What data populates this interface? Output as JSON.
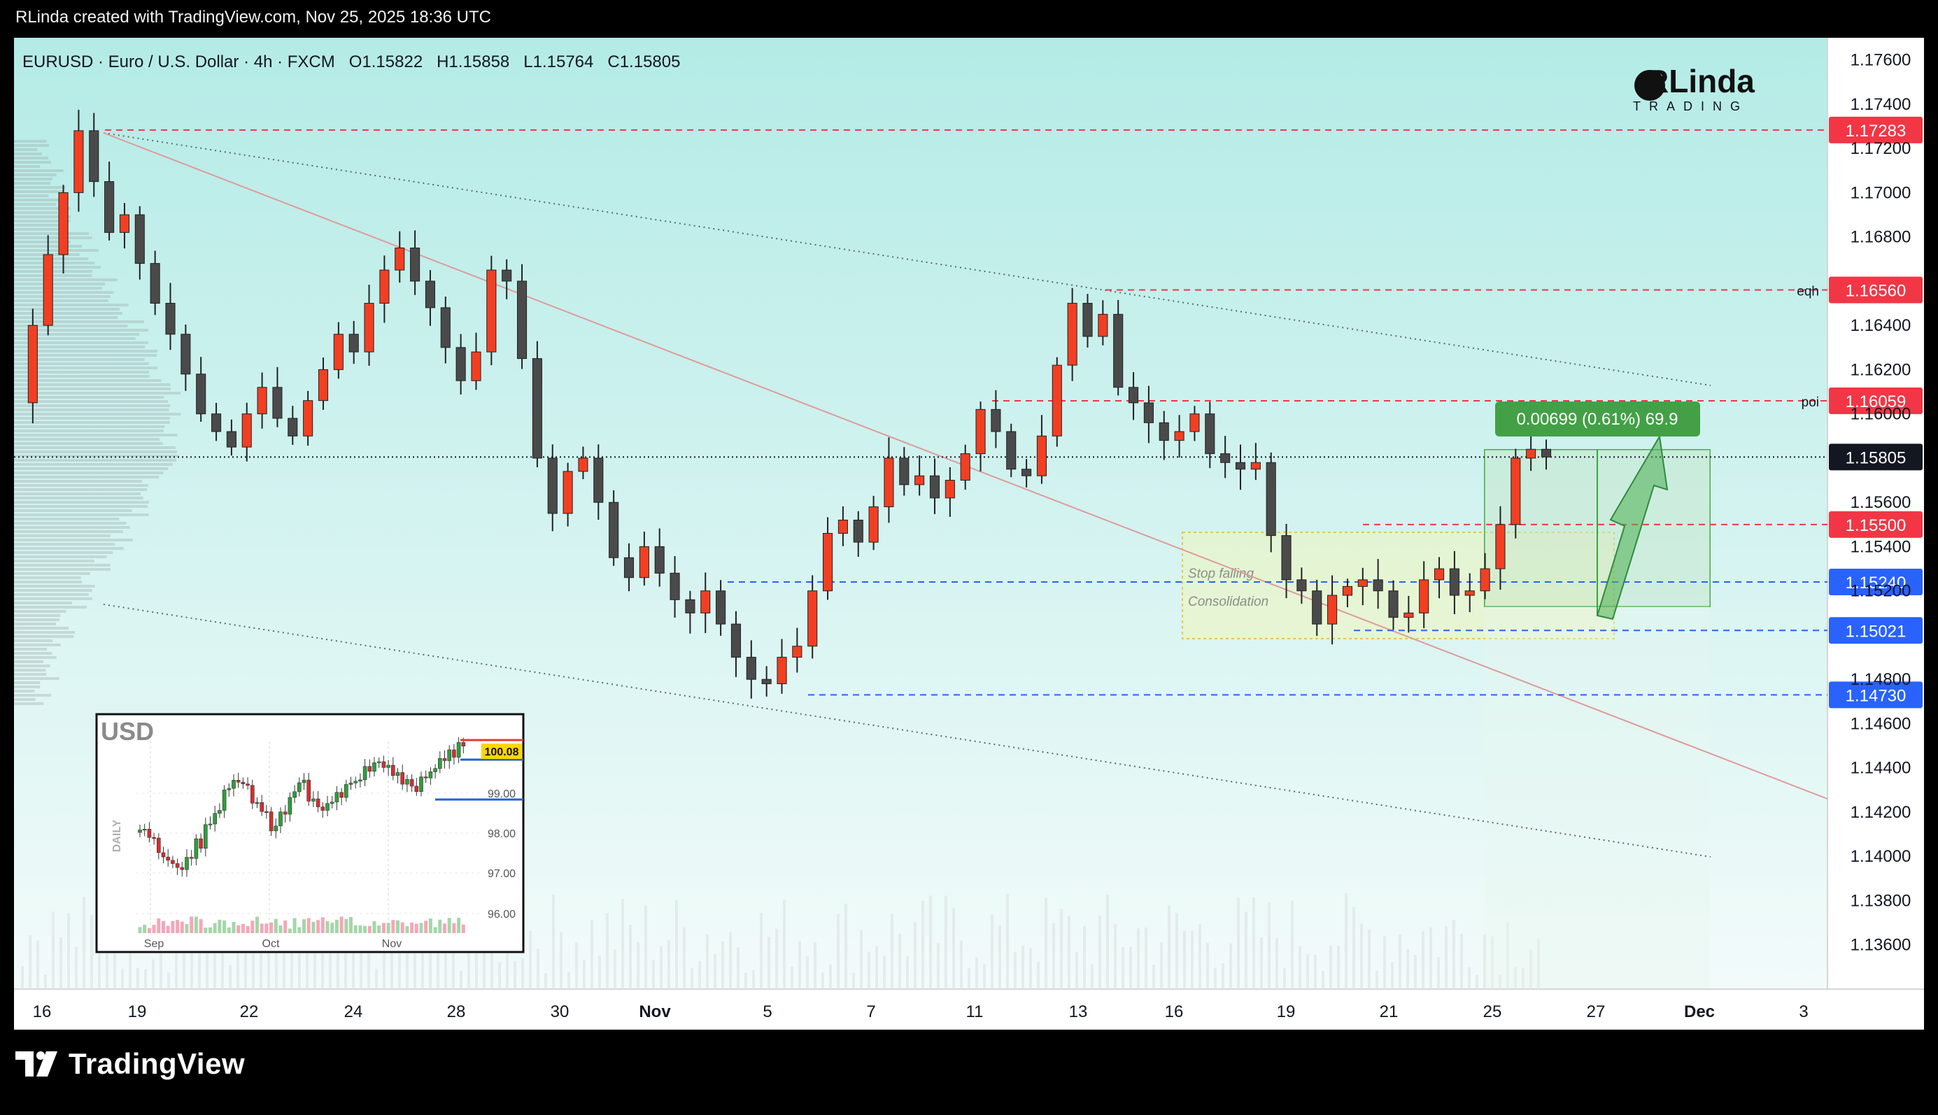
{
  "header": {
    "credit": "RLinda created with TradingView.com, Nov 25, 2025 18:36 UTC"
  },
  "footer": {
    "brand": "TradingView",
    "logo_icon": "tradingview-logo-icon"
  },
  "chart": {
    "symbol_line": "EURUSD · Euro / U.S. Dollar · 4h · FXCM",
    "ohlc": {
      "O": "O1.15822",
      "H": "H1.15858",
      "L": "L1.15764",
      "C": "C1.15805"
    },
    "author_logo": {
      "line1": "RLinda",
      "line2": "TRADING"
    },
    "colors": {
      "up": "#f23f22",
      "down": "#4a4a4a",
      "background_top": "#b4ebe6",
      "background_bottom": "#f2fbfa",
      "red_label": "#f23645",
      "blue_label": "#2962ff"
    }
  },
  "chart_data": {
    "type": "candlestick",
    "title": "EURUSD · Euro / U.S. Dollar · 4h · FXCM",
    "ylim": [
      1.134,
      1.177
    ],
    "price_axis_ticks": [
      "1.17600",
      "1.17400",
      "1.17200",
      "1.17000",
      "1.16800",
      "1.16400",
      "1.16200",
      "1.16000",
      "1.15600",
      "1.15400",
      "1.15200",
      "1.14800",
      "1.14600",
      "1.14400",
      "1.14200",
      "1.14000",
      "1.13800",
      "1.13600"
    ],
    "date_axis_ticks": [
      "16",
      "19",
      "22",
      "24",
      "28",
      "30",
      "Nov",
      "5",
      "7",
      "11",
      "13",
      "16",
      "19",
      "21",
      "25",
      "27",
      "Dec",
      "3"
    ],
    "levels": [
      {
        "price": 1.17283,
        "label": "1.17283",
        "color": "red",
        "tag": ""
      },
      {
        "price": 1.1656,
        "label": "1.16560",
        "color": "red",
        "tag": "eqh"
      },
      {
        "price": 1.16059,
        "label": "1.16059",
        "color": "red",
        "tag": "poi"
      },
      {
        "price": 1.15805,
        "label": "1.15805",
        "color": "dark",
        "tag": ""
      },
      {
        "price": 1.155,
        "label": "1.15500",
        "color": "red",
        "tag": ""
      },
      {
        "price": 1.1524,
        "label": "1.15240",
        "color": "blue",
        "tag": ""
      },
      {
        "price": 1.15021,
        "label": "1.15021",
        "color": "blue",
        "tag": ""
      },
      {
        "price": 1.1473,
        "label": "1.14730",
        "color": "blue",
        "tag": ""
      }
    ],
    "annotations": {
      "consolidation_box": [
        "Stop falling",
        "Consolidation"
      ],
      "measure_label": "0.00699 (0.61%) 69.9"
    },
    "candle_path": [
      1.1605,
      1.164,
      1.1672,
      1.17,
      1.1728,
      1.1705,
      1.1682,
      1.169,
      1.1668,
      1.165,
      1.1636,
      1.1618,
      1.16,
      1.1592,
      1.1585,
      1.16,
      1.1612,
      1.1598,
      1.159,
      1.1606,
      1.162,
      1.1636,
      1.1628,
      1.165,
      1.1665,
      1.1675,
      1.166,
      1.1648,
      1.163,
      1.1615,
      1.1628,
      1.1665,
      1.166,
      1.1625,
      1.158,
      1.1555,
      1.1574,
      1.158,
      1.156,
      1.1535,
      1.1526,
      1.154,
      1.1528,
      1.1516,
      1.151,
      1.152,
      1.1505,
      1.149,
      1.148,
      1.1478,
      1.149,
      1.1495,
      1.152,
      1.1546,
      1.1552,
      1.1542,
      1.1558,
      1.158,
      1.1568,
      1.1572,
      1.1562,
      1.157,
      1.1582,
      1.1602,
      1.1592,
      1.1575,
      1.1572,
      1.159,
      1.1622,
      1.165,
      1.1635,
      1.1645,
      1.1612,
      1.1605,
      1.1596,
      1.1588,
      1.1592,
      1.16,
      1.1582,
      1.1578,
      1.1575,
      1.1578,
      1.1545,
      1.1525,
      1.152,
      1.1505,
      1.1518,
      1.1522,
      1.1525,
      1.152,
      1.1508,
      1.151,
      1.1525,
      1.153,
      1.1518,
      1.152,
      1.153,
      1.155,
      1.158,
      1.1584,
      1.15805
    ]
  },
  "inset": {
    "title": "USD",
    "axis_label": "DAILY",
    "price_ticks": [
      "99.00",
      "98.00",
      "97.00",
      "96.00"
    ],
    "current_price": "100.08",
    "date_ticks": [
      "Sep",
      "Oct",
      "Nov"
    ]
  }
}
